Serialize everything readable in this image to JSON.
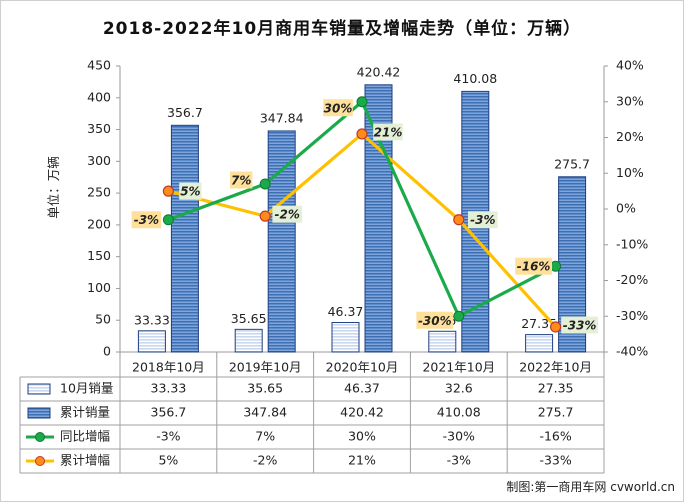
{
  "chart_data": {
    "type": "bar+line",
    "title": "2018-2022年10月商用车销量及增幅走势（单位：万辆）",
    "ylabel": "单位：万辆",
    "categories": [
      "2018年10月",
      "2019年10月",
      "2020年10月",
      "2021年10月",
      "2022年10月"
    ],
    "ylim": [
      0,
      450
    ],
    "y_ticks": [
      "0",
      "50",
      "100",
      "150",
      "200",
      "250",
      "300",
      "350",
      "400",
      "450"
    ],
    "y2lim": [
      -40,
      40
    ],
    "y2_ticks": [
      "-40%",
      "-30%",
      "-20%",
      "-10%",
      "0%",
      "10%",
      "20%",
      "30%",
      "40%"
    ],
    "grid": false,
    "legend": "table-bottom",
    "series": [
      {
        "name": "10月销量",
        "kind": "bar",
        "axis": "left",
        "values": [
          33.33,
          35.65,
          46.37,
          32.6,
          27.35
        ],
        "labels": [
          "33.33",
          "35.65",
          "46.37",
          "32.6",
          "27.35"
        ],
        "color": "#dbe5f5"
      },
      {
        "name": "累计销量",
        "kind": "bar",
        "axis": "left",
        "values": [
          356.7,
          347.84,
          420.42,
          410.08,
          275.7
        ],
        "labels": [
          "356.7",
          "347.84",
          "420.42",
          "410.08",
          "275.7"
        ],
        "color": "#4f81bd"
      },
      {
        "name": "同比增幅",
        "kind": "line",
        "axis": "right",
        "values": [
          -3,
          7,
          30,
          -30,
          -16
        ],
        "labels": [
          "-3%",
          "7%",
          "30%",
          "-30%",
          "-16%"
        ],
        "color": "#1aaa4a"
      },
      {
        "name": "累计增幅",
        "kind": "line",
        "axis": "right",
        "values": [
          5,
          -2,
          21,
          -3,
          -33
        ],
        "labels": [
          "5%",
          "-2%",
          "21%",
          "-3%",
          "-33%"
        ],
        "color": "#ffc000"
      }
    ]
  },
  "footer": {
    "credit": "制图:第一商用车网 cvworld.cn"
  }
}
